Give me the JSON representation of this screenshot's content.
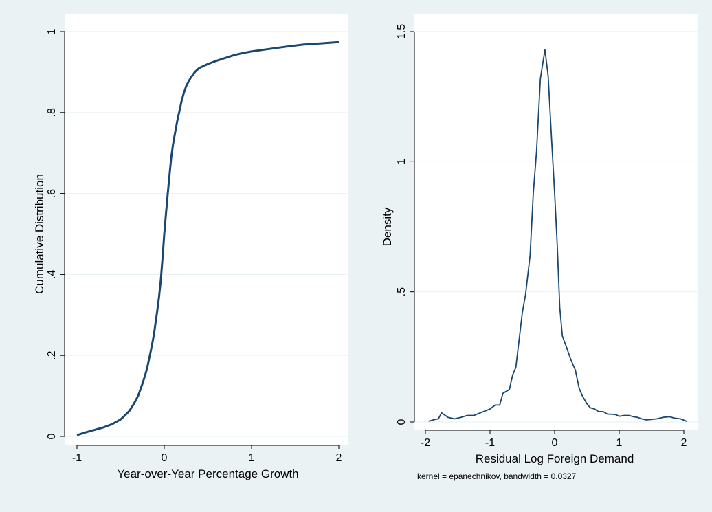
{
  "colors": {
    "background": "#eaf2f3",
    "plot_background": "#ffffff",
    "grid": "#eaf2f3",
    "line": "#1a476f",
    "axis": "#000000"
  },
  "chart_data": [
    {
      "type": "line",
      "title": "",
      "xlabel": "Year-over-Year Percentage Growth",
      "ylabel": "Cumulative Distribution",
      "xlim": [
        -1,
        2
      ],
      "ylim": [
        0,
        1
      ],
      "xticks": [
        -1,
        0,
        1,
        2
      ],
      "xtick_labels": [
        "-1",
        "0",
        "1",
        "2"
      ],
      "yticks": [
        0,
        0.2,
        0.4,
        0.6,
        0.8,
        1
      ],
      "ytick_labels": [
        "0",
        ".2",
        ".4",
        ".6",
        ".8",
        "1"
      ],
      "grid": true,
      "series": [
        {
          "x": [
            -1.0,
            -0.9,
            -0.8,
            -0.7,
            -0.6,
            -0.5,
            -0.45,
            -0.4,
            -0.35,
            -0.3,
            -0.25,
            -0.2,
            -0.15,
            -0.12,
            -0.1,
            -0.08,
            -0.06,
            -0.04,
            -0.02,
            0.0,
            0.02,
            0.04,
            0.06,
            0.08,
            0.1,
            0.12,
            0.15,
            0.18,
            0.2,
            0.22,
            0.25,
            0.3,
            0.35,
            0.4,
            0.5,
            0.6,
            0.7,
            0.8,
            0.9,
            1.0,
            1.2,
            1.4,
            1.6,
            1.8,
            2.0
          ],
          "y": [
            0.003,
            0.01,
            0.016,
            0.022,
            0.03,
            0.042,
            0.052,
            0.063,
            0.08,
            0.1,
            0.13,
            0.165,
            0.215,
            0.25,
            0.28,
            0.31,
            0.345,
            0.385,
            0.44,
            0.5,
            0.55,
            0.6,
            0.645,
            0.69,
            0.72,
            0.745,
            0.78,
            0.81,
            0.83,
            0.845,
            0.865,
            0.885,
            0.9,
            0.91,
            0.92,
            0.928,
            0.935,
            0.942,
            0.947,
            0.951,
            0.957,
            0.963,
            0.968,
            0.971,
            0.974
          ]
        }
      ]
    },
    {
      "type": "line",
      "title": "",
      "xlabel": "Residual Log Foreign Demand",
      "ylabel": "Density",
      "note": "kernel = epanechnikov, bandwidth = 0.0327",
      "xlim": [
        -2,
        2
      ],
      "ylim": [
        0,
        1.5
      ],
      "xticks": [
        -2,
        -1,
        0,
        1,
        2
      ],
      "xtick_labels": [
        "-2",
        "-1",
        "0",
        "1",
        "2"
      ],
      "yticks": [
        0,
        0.5,
        1,
        1.5
      ],
      "ytick_labels": [
        "0",
        ".5",
        "1",
        "1.5"
      ],
      "grid": true,
      "series": [
        {
          "x": [
            -1.95,
            -1.85,
            -1.8,
            -1.75,
            -1.65,
            -1.55,
            -1.45,
            -1.35,
            -1.25,
            -1.15,
            -1.05,
            -1.0,
            -0.92,
            -0.85,
            -0.8,
            -0.7,
            -0.65,
            -0.6,
            -0.5,
            -0.45,
            -0.38,
            -0.33,
            -0.28,
            -0.22,
            -0.15,
            -0.1,
            -0.05,
            0.0,
            0.04,
            0.08,
            0.12,
            0.18,
            0.25,
            0.32,
            0.38,
            0.43,
            0.5,
            0.55,
            0.62,
            0.68,
            0.75,
            0.82,
            0.87,
            0.95,
            1.0,
            1.08,
            1.15,
            1.22,
            1.28,
            1.35,
            1.42,
            1.5,
            1.58,
            1.68,
            1.78,
            1.85,
            1.95,
            2.05
          ],
          "y": [
            0.003,
            0.01,
            0.012,
            0.035,
            0.018,
            0.012,
            0.018,
            0.025,
            0.025,
            0.035,
            0.045,
            0.05,
            0.065,
            0.065,
            0.11,
            0.125,
            0.18,
            0.21,
            0.42,
            0.49,
            0.64,
            0.88,
            1.04,
            1.32,
            1.43,
            1.33,
            1.1,
            0.88,
            0.68,
            0.44,
            0.33,
            0.29,
            0.24,
            0.2,
            0.13,
            0.1,
            0.07,
            0.055,
            0.05,
            0.04,
            0.04,
            0.03,
            0.03,
            0.028,
            0.022,
            0.025,
            0.025,
            0.02,
            0.018,
            0.012,
            0.008,
            0.01,
            0.012,
            0.018,
            0.02,
            0.015,
            0.012,
            0.002
          ]
        }
      ]
    }
  ]
}
